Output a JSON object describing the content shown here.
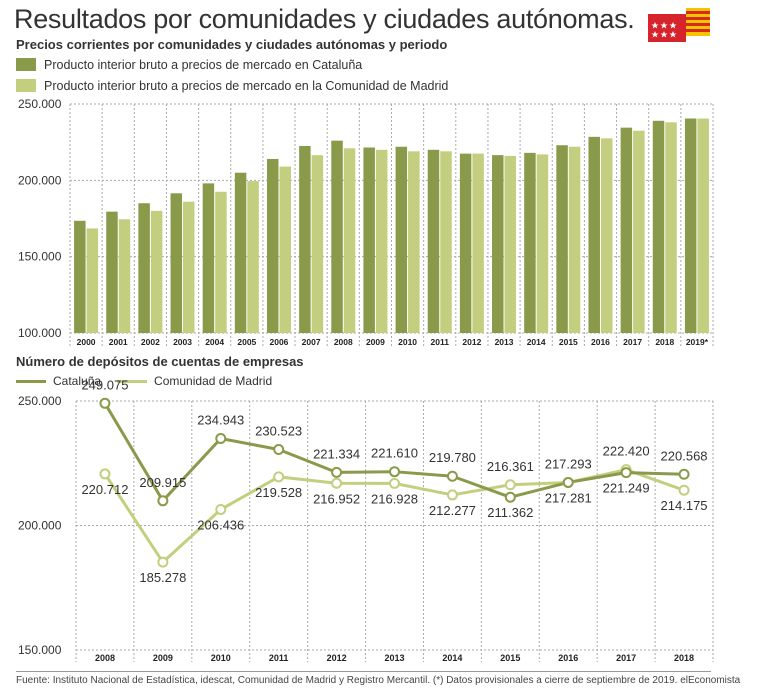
{
  "header": {
    "title": "Resultados por comunidades y ciudades autónomas.",
    "subtitle": "Precios corrientes por comunidades y ciudades autónomas y periodo"
  },
  "colors": {
    "cataluna": "#8a9a4b",
    "madrid": "#c3cf7e",
    "grid": "#aaaaaa",
    "madrid_flag": "#d7232b",
    "cataluna_flag_yellow": "#f5c400",
    "cataluna_flag_red": "#d52b1e"
  },
  "icons": {
    "flags": "madrid-and-catalonia-flags-icon"
  },
  "chart_data": [
    {
      "type": "bar",
      "legend_position": "top-left",
      "grid": true,
      "categories": [
        "2000",
        "2001",
        "2002",
        "2003",
        "2004",
        "2005",
        "2006",
        "2007",
        "2008",
        "2009",
        "2010",
        "2011",
        "2012",
        "2013",
        "2014",
        "2015",
        "2016",
        "2017",
        "2018",
        "2019*"
      ],
      "ylim": [
        100000,
        250000
      ],
      "yticks": [
        "100.000",
        "150.000",
        "200.000",
        "250.000"
      ],
      "ytick_values": [
        100000,
        150000,
        200000,
        250000
      ],
      "series": [
        {
          "name": "Producto interior bruto a precios de mercado en Cataluña",
          "values": [
            173500,
            179500,
            185000,
            191500,
            198000,
            205000,
            214000,
            222500,
            226000,
            221500,
            222000,
            220000,
            217500,
            216500,
            218000,
            223000,
            228500,
            234500,
            239000,
            240500
          ]
        },
        {
          "name": "Producto interior bruto a precios de mercado en la Comunidad de Madrid",
          "values": [
            168500,
            174500,
            180000,
            186000,
            192500,
            199500,
            209000,
            216500,
            221000,
            220000,
            219000,
            219000,
            217500,
            216000,
            217000,
            222000,
            227500,
            232500,
            238000,
            240500
          ]
        }
      ]
    },
    {
      "type": "line",
      "title": "Número de depósitos de cuentas de empresas",
      "legend_position": "top-left",
      "grid": true,
      "x": [
        "2008",
        "2009",
        "2010",
        "2011",
        "2012",
        "2013",
        "2014",
        "2015",
        "2016",
        "2017",
        "2018"
      ],
      "ylim": [
        150000,
        250000
      ],
      "yticks": [
        "150.000",
        "200.000",
        "250.000"
      ],
      "ytick_values": [
        150000,
        200000,
        250000
      ],
      "series": [
        {
          "name": "Cataluña",
          "values": [
            249075,
            209915,
            234943,
            230523,
            221334,
            221610,
            219780,
            211362,
            217293,
            221249,
            220568
          ],
          "labels": [
            "249.075",
            "209.915",
            "234.943",
            "230.523",
            "221.334",
            "221.610",
            "219.780",
            "211.362",
            "217.293",
            "221.249",
            "220.568"
          ]
        },
        {
          "name": "Comunidad de Madrid",
          "values": [
            220712,
            185278,
            206436,
            219528,
            216952,
            216928,
            212277,
            216361,
            217281,
            222420,
            214175
          ],
          "labels": [
            "220.712",
            "185.278",
            "206.436",
            "219.528",
            "216.952",
            "216.928",
            "212.277",
            "216.361",
            "217.281",
            "222.420",
            "214.175"
          ]
        }
      ]
    }
  ],
  "footer": {
    "source": "Fuente: Instituto Nacional de Estadística, idescat, Comunidad de Madrid y Registro Mercantil. (*) Datos provisionales a cierre de septiembre de 2019. elEconomista"
  }
}
